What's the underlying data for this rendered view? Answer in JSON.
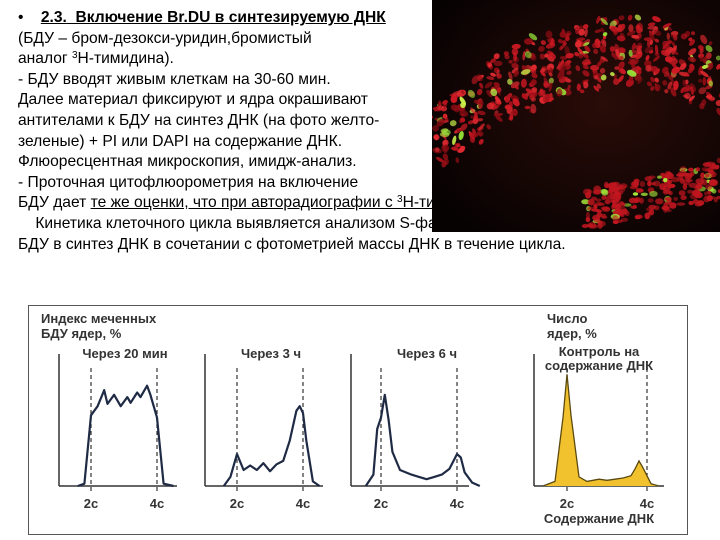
{
  "text": {
    "bullet": "•",
    "title_num": "2.3.",
    "title": "Включение Br.DU в синтезируемую ДНК",
    "line2": "(БДУ – бром-дезокси-уридин,бромистый",
    "line3_pre": "аналог ",
    "line3_sup": "3",
    "line3_post": "Н-тимидина).",
    "line4": "-   БДУ вводят живым клеткам на 30-60 мин.",
    "line5": "Далее материал фиксируют и ядра окрашивают",
    "line6": "антителами к БДУ на синтез ДНК (на фото желто-",
    "line7": "зеленые) + PI или DAPI на содержание ДНК.",
    "line8": "Флюоресцентная микроскопия, имидж-анализ.",
    "line9": "-   Проточная цитофлюорометрия на включение",
    "line10_pre": "БДУ  дает ",
    "line10_u": "те же оценки, что при авторадиографии с ",
    "line10_sup": "3",
    "line10_u2": "Н-тимидином",
    "line10_end": ".",
    "line11": "    Кинетика клеточного цикла выявляется анализом S-фазного включения",
    "line12": "БДУ в синтез ДНК  в сочетании с фотометрией массы ДНК  в течение цикла."
  },
  "figure": {
    "ylabel_left_1": "Индекс меченных",
    "ylabel_left_2": "БДУ ядер, %",
    "ylabel_right_1": "Число",
    "ylabel_right_2": "ядер, %",
    "xlabel": "Содержание ДНК",
    "colors": {
      "line": "#1f2a44",
      "fill": "#f2c12e",
      "axis": "#333333"
    }
  },
  "chart_data": [
    {
      "type": "line",
      "title": "Через 20 мин",
      "xticks": [
        "2с",
        "4с"
      ],
      "x": [
        1.6,
        1.8,
        2.0,
        2.2,
        2.4,
        2.5,
        2.7,
        2.9,
        3.1,
        3.2,
        3.4,
        3.5,
        3.7,
        3.8,
        4.0,
        4.2,
        4.5
      ],
      "y": [
        0,
        2,
        62,
        70,
        84,
        72,
        80,
        70,
        78,
        73,
        82,
        78,
        88,
        80,
        60,
        2,
        0
      ]
    },
    {
      "type": "line",
      "title": "Через 3 ч",
      "xticks": [
        "2с",
        "4с"
      ],
      "x": [
        1.6,
        1.8,
        2.0,
        2.2,
        2.4,
        2.6,
        2.8,
        3.0,
        3.2,
        3.4,
        3.6,
        3.8,
        3.9,
        4.0,
        4.1,
        4.3,
        4.5
      ],
      "y": [
        0,
        8,
        28,
        14,
        18,
        14,
        20,
        13,
        19,
        22,
        40,
        66,
        70,
        64,
        40,
        4,
        0
      ]
    },
    {
      "type": "line",
      "title": "Через 6 ч",
      "xticks": [
        "2с",
        "4с"
      ],
      "x": [
        1.6,
        1.8,
        1.9,
        2.0,
        2.1,
        2.2,
        2.3,
        2.5,
        2.8,
        3.0,
        3.2,
        3.4,
        3.6,
        3.8,
        4.0,
        4.1,
        4.2,
        4.4,
        4.6
      ],
      "y": [
        0,
        10,
        50,
        60,
        80,
        58,
        30,
        14,
        10,
        8,
        6,
        8,
        10,
        15,
        28,
        25,
        12,
        3,
        0
      ]
    },
    {
      "type": "area",
      "title": "Контроль на содержание ДНК",
      "xticks": [
        "2с",
        "4с"
      ],
      "x": [
        1.4,
        1.7,
        1.9,
        2.0,
        2.1,
        2.3,
        2.5,
        2.8,
        3.0,
        3.2,
        3.4,
        3.6,
        3.7,
        3.8,
        3.9,
        4.1,
        4.3
      ],
      "y": [
        0,
        4,
        60,
        98,
        62,
        8,
        4,
        6,
        5,
        6,
        7,
        9,
        15,
        22,
        16,
        2,
        0
      ]
    }
  ]
}
